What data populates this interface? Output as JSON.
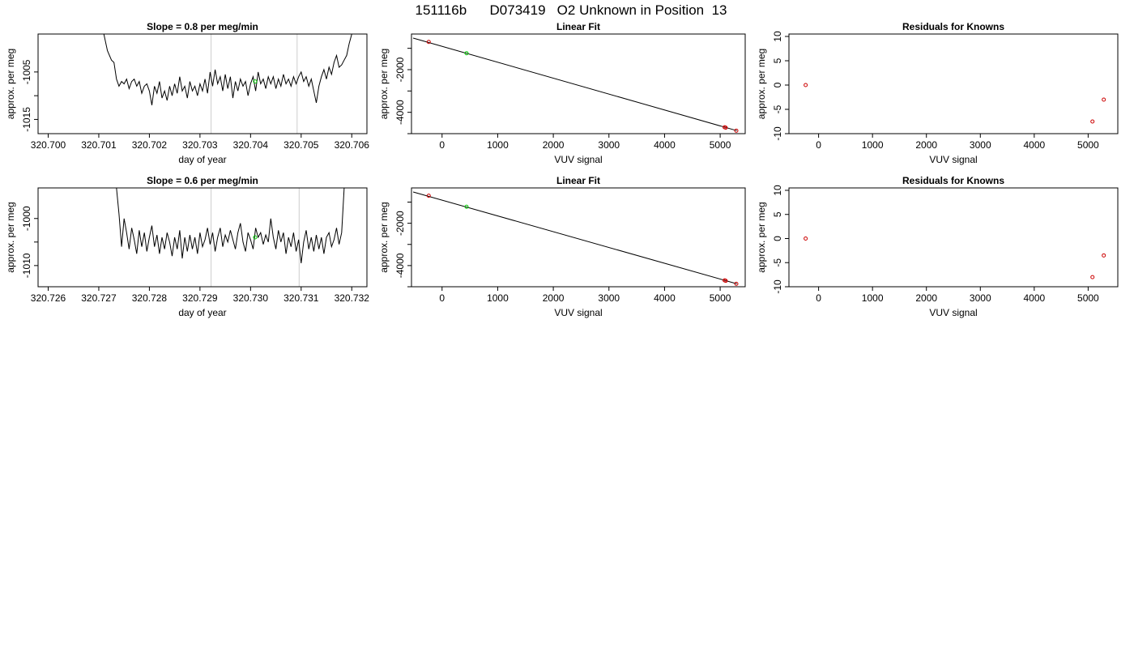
{
  "figure_title": "151116b      D073419   O2 Unknown in Position  13",
  "chart_data": [
    {
      "type": "line",
      "title": "Slope =  0.8  per meg/min",
      "xlabel": "day of year",
      "ylabel": "approx. per meg",
      "xlim": [
        320.6998,
        320.7063
      ],
      "ylim": [
        -1018,
        -997
      ],
      "xticks": [
        320.7,
        320.701,
        320.702,
        320.703,
        320.704,
        320.705,
        320.706
      ],
      "xtick_labels": [
        "320.700",
        "320.701",
        "320.702",
        "320.703",
        "320.704",
        "320.705",
        "320.706"
      ],
      "yticks": [
        -1015,
        -1010,
        -1005
      ],
      "ytick_labels": [
        "-1015",
        "",
        "-1005"
      ],
      "vlines": [
        320.70322,
        320.70492
      ],
      "marker": {
        "x": 320.70409,
        "y": -1007.0
      },
      "x": [
        320.7011,
        320.70117,
        320.70125,
        320.7013,
        320.70135,
        320.7014,
        320.70145,
        320.7015,
        320.70155,
        320.7016,
        320.70165,
        320.7017,
        320.70175,
        320.7018,
        320.70185,
        320.7019,
        320.70195,
        320.702,
        320.70205,
        320.7021,
        320.70215,
        320.7022,
        320.70225,
        320.7023,
        320.70235,
        320.7024,
        320.70245,
        320.7025,
        320.70255,
        320.7026,
        320.70265,
        320.7027,
        320.70275,
        320.7028,
        320.70285,
        320.7029,
        320.70295,
        320.703,
        320.70305,
        320.7031,
        320.70315,
        320.7032,
        320.70325,
        320.7033,
        320.70335,
        320.7034,
        320.70345,
        320.7035,
        320.70355,
        320.7036,
        320.70365,
        320.7037,
        320.70375,
        320.7038,
        320.70385,
        320.7039,
        320.70395,
        320.704,
        320.70405,
        320.7041,
        320.70415,
        320.7042,
        320.70425,
        320.7043,
        320.70435,
        320.7044,
        320.70445,
        320.7045,
        320.70455,
        320.7046,
        320.70465,
        320.7047,
        320.70475,
        320.7048,
        320.70485,
        320.7049,
        320.70495,
        320.705,
        320.70505,
        320.7051,
        320.70515,
        320.7052,
        320.70525,
        320.7053,
        320.70535,
        320.7054,
        320.70545,
        320.7055,
        320.70555,
        320.7056,
        320.70565,
        320.7057,
        320.70575,
        320.7058,
        320.70585,
        320.7059,
        320.70595,
        320.706
      ],
      "y": [
        -997,
        -1000.5,
        -1002.5,
        -1003,
        -1006.5,
        -1008,
        -1007,
        -1007.5,
        -1006.5,
        -1008.5,
        -1007,
        -1006.5,
        -1008,
        -1007,
        -1009.5,
        -1008,
        -1007.5,
        -1009,
        -1012,
        -1008,
        -1009.5,
        -1007,
        -1010.5,
        -1009,
        -1011,
        -1008,
        -1010,
        -1007.5,
        -1009.5,
        -1006,
        -1009,
        -1008,
        -1010.5,
        -1007,
        -1009,
        -1008,
        -1010,
        -1007.5,
        -1009,
        -1006.5,
        -1009.5,
        -1005,
        -1008,
        -1004.5,
        -1007.5,
        -1006,
        -1009,
        -1005.5,
        -1008.5,
        -1006,
        -1010.5,
        -1007,
        -1009,
        -1006.5,
        -1008,
        -1007,
        -1010,
        -1007.5,
        -1006,
        -1009,
        -1005,
        -1007.5,
        -1006.5,
        -1008.5,
        -1006,
        -1007.5,
        -1006,
        -1008.5,
        -1006.5,
        -1008,
        -1005.5,
        -1007.5,
        -1006.5,
        -1008,
        -1006,
        -1007.5,
        -1006,
        -1005,
        -1007,
        -1006,
        -1008,
        -1006.5,
        -1009,
        -1011.5,
        -1008,
        -1006,
        -1004.5,
        -1006.5,
        -1004,
        -1005.5,
        -1003,
        -1001.5,
        -1004,
        -1003.5,
        -1002.5,
        -1001.5,
        -999,
        -997
      ]
    },
    {
      "type": "scatter",
      "title": "Linear Fit",
      "xlabel": "VUV signal",
      "ylabel": "approx. per meg",
      "xlim": [
        -550,
        5450
      ],
      "ylim": [
        -5000,
        -330
      ],
      "xticks": [
        0,
        1000,
        2000,
        3000,
        4000,
        5000
      ],
      "xtick_labels": [
        "0",
        "1000",
        "2000",
        "3000",
        "4000",
        "5000"
      ],
      "yticks": [
        -5000,
        -4000,
        -3000,
        -2000,
        -1000
      ],
      "ytick_labels": [
        "",
        "-4000",
        "",
        "-2000",
        ""
      ],
      "line": {
        "x": [
          -520,
          5300
        ],
        "y": [
          -520,
          -4860
        ]
      },
      "points": [
        {
          "x": -240,
          "y": -700,
          "color": "#cc0000"
        },
        {
          "x": 440,
          "y": -1230,
          "color": "#00cc00"
        },
        {
          "x": 5080,
          "y": -4700,
          "color": "#cc0000"
        },
        {
          "x": 5100,
          "y": -4720,
          "color": "#cc0000"
        },
        {
          "x": 5290,
          "y": -4860,
          "color": "#cc0000"
        }
      ]
    },
    {
      "type": "scatter",
      "title": "Residuals for Knowns",
      "xlabel": "VUV signal",
      "ylabel": "approx. per meg",
      "xlim": [
        -550,
        5550
      ],
      "ylim": [
        -10,
        10.5
      ],
      "xticks": [
        0,
        1000,
        2000,
        3000,
        4000,
        5000
      ],
      "xtick_labels": [
        "0",
        "1000",
        "2000",
        "3000",
        "4000",
        "5000"
      ],
      "yticks": [
        -10,
        -5,
        0,
        5,
        10
      ],
      "ytick_labels": [
        "-10",
        "-5",
        "0",
        "5",
        "10"
      ],
      "points": [
        {
          "x": -240,
          "y": 0.0,
          "color": "#cc0000"
        },
        {
          "x": 5080,
          "y": -7.5,
          "color": "#cc0000"
        },
        {
          "x": 5290,
          "y": -3.0,
          "color": "#cc0000"
        }
      ]
    },
    {
      "type": "line",
      "title": "Slope =  0.6  per meg/min",
      "xlabel": "day of year",
      "ylabel": "approx. per meg",
      "xlim": [
        320.7258,
        320.7323
      ],
      "ylim": [
        -1014.5,
        -993.5
      ],
      "xticks": [
        320.726,
        320.727,
        320.728,
        320.729,
        320.73,
        320.731,
        320.732
      ],
      "xtick_labels": [
        "320.726",
        "320.727",
        "320.728",
        "320.729",
        "320.730",
        "320.731",
        "320.732"
      ],
      "yticks": [
        -1010,
        -1005,
        -1000
      ],
      "ytick_labels": [
        "-1010",
        "",
        "-1000"
      ],
      "vlines": [
        320.72922,
        320.73096
      ],
      "marker": {
        "x": 320.73009,
        "y": -1004.0
      },
      "x": [
        320.72735,
        320.7274,
        320.72745,
        320.7275,
        320.72755,
        320.7276,
        320.72765,
        320.7277,
        320.72775,
        320.7278,
        320.72785,
        320.7279,
        320.72795,
        320.728,
        320.72805,
        320.7281,
        320.72815,
        320.7282,
        320.72825,
        320.7283,
        320.72835,
        320.7284,
        320.72845,
        320.7285,
        320.72855,
        320.7286,
        320.72865,
        320.7287,
        320.72875,
        320.7288,
        320.72885,
        320.7289,
        320.72895,
        320.729,
        320.72905,
        320.7291,
        320.72915,
        320.7292,
        320.72925,
        320.7293,
        320.72935,
        320.7294,
        320.72945,
        320.7295,
        320.72955,
        320.7296,
        320.72965,
        320.7297,
        320.72975,
        320.7298,
        320.72985,
        320.7299,
        320.72995,
        320.73,
        320.73005,
        320.7301,
        320.73015,
        320.7302,
        320.73025,
        320.7303,
        320.73035,
        320.7304,
        320.73045,
        320.7305,
        320.73055,
        320.7306,
        320.73065,
        320.7307,
        320.73075,
        320.7308,
        320.73085,
        320.7309,
        320.73095,
        320.731,
        320.73105,
        320.7311,
        320.73115,
        320.7312,
        320.73125,
        320.7313,
        320.73135,
        320.7314,
        320.73145,
        320.7315,
        320.73155,
        320.7316,
        320.73165,
        320.7317,
        320.73175,
        320.7318,
        320.73185
      ],
      "y": [
        -993.5,
        -999,
        -1006,
        -1000,
        -1003,
        -1006.5,
        -1002,
        -1004.5,
        -1007.5,
        -1002.5,
        -1006,
        -1003,
        -1007,
        -1004,
        -1001.5,
        -1006,
        -1003.5,
        -1007.5,
        -1004,
        -1006.5,
        -1003,
        -1005,
        -1008,
        -1004,
        -1006.5,
        -1002.5,
        -1008.5,
        -1004,
        -1007,
        -1003.5,
        -1006.5,
        -1004,
        -1007.5,
        -1003,
        -1006,
        -1004.5,
        -1002,
        -1005.5,
        -1003,
        -1007,
        -1004,
        -1002,
        -1006,
        -1003.5,
        -1005,
        -1002.5,
        -1004.5,
        -1006.5,
        -1003,
        -1001,
        -1005,
        -1007,
        -1003,
        -1004.5,
        -1006.5,
        -1002,
        -1004,
        -1003,
        -1005.5,
        -1003.5,
        -1005,
        -1000,
        -1004,
        -1006.5,
        -1002.5,
        -1005,
        -1003,
        -1007.5,
        -1004,
        -1006,
        -1003,
        -1007,
        -1004.5,
        -1009.5,
        -1005,
        -1002.5,
        -1006.5,
        -1004,
        -1007,
        -1003.5,
        -1006.5,
        -1004,
        -1007.5,
        -1004,
        -1003,
        -1006,
        -1004.5,
        -1002,
        -1005.5,
        -1003,
        -993.5
      ]
    },
    {
      "type": "scatter",
      "title": "Linear Fit",
      "xlabel": "VUV signal",
      "ylabel": "approx. per meg",
      "xlim": [
        -550,
        5450
      ],
      "ylim": [
        -5000,
        -330
      ],
      "xticks": [
        0,
        1000,
        2000,
        3000,
        4000,
        5000
      ],
      "xtick_labels": [
        "0",
        "1000",
        "2000",
        "3000",
        "4000",
        "5000"
      ],
      "yticks": [
        -5000,
        -4000,
        -3000,
        -2000,
        -1000
      ],
      "ytick_labels": [
        "",
        "-4000",
        "",
        "-2000",
        ""
      ],
      "line": {
        "x": [
          -520,
          5300
        ],
        "y": [
          -520,
          -4860
        ]
      },
      "points": [
        {
          "x": -240,
          "y": -700,
          "color": "#cc0000"
        },
        {
          "x": 440,
          "y": -1220,
          "color": "#00cc00"
        },
        {
          "x": 5080,
          "y": -4700,
          "color": "#cc0000"
        },
        {
          "x": 5100,
          "y": -4720,
          "color": "#cc0000"
        },
        {
          "x": 5290,
          "y": -4860,
          "color": "#cc0000"
        }
      ]
    },
    {
      "type": "scatter",
      "title": "Residuals for Knowns",
      "xlabel": "VUV signal",
      "ylabel": "approx. per meg",
      "xlim": [
        -550,
        5550
      ],
      "ylim": [
        -10,
        10.5
      ],
      "xticks": [
        0,
        1000,
        2000,
        3000,
        4000,
        5000
      ],
      "xtick_labels": [
        "0",
        "1000",
        "2000",
        "3000",
        "4000",
        "5000"
      ],
      "yticks": [
        -10,
        -5,
        0,
        5,
        10
      ],
      "ytick_labels": [
        "-10",
        "-5",
        "0",
        "5",
        "10"
      ],
      "points": [
        {
          "x": -240,
          "y": 0.0,
          "color": "#cc0000"
        },
        {
          "x": 5080,
          "y": -8.0,
          "color": "#cc0000"
        },
        {
          "x": 5290,
          "y": -3.5,
          "color": "#cc0000"
        }
      ]
    }
  ]
}
